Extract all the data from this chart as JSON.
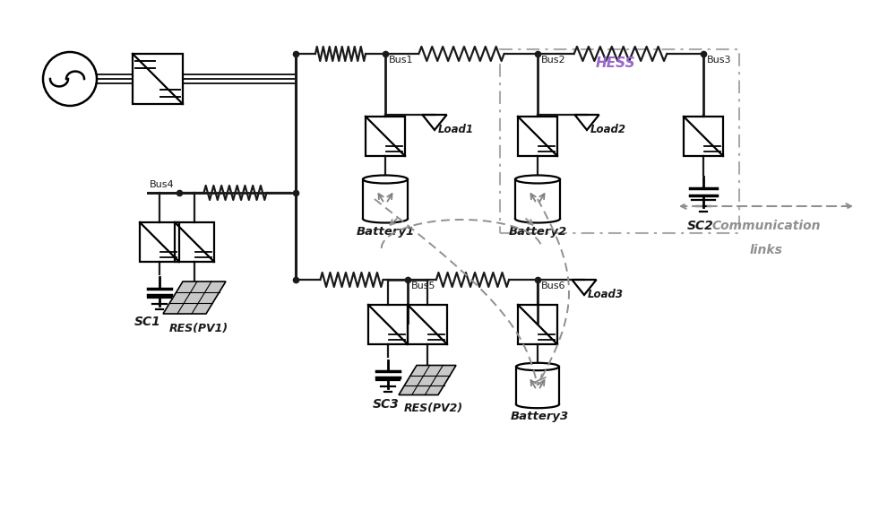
{
  "bg_color": "#ffffff",
  "line_color": "#1a1a1a",
  "gray_color": "#808080",
  "dashed_color": "#909090",
  "hess_color": "#9966cc",
  "figure_size": [
    10.0,
    5.7
  ],
  "dpi": 100,
  "xlim": [
    0,
    10
  ],
  "ylim": [
    0,
    5.7
  ]
}
